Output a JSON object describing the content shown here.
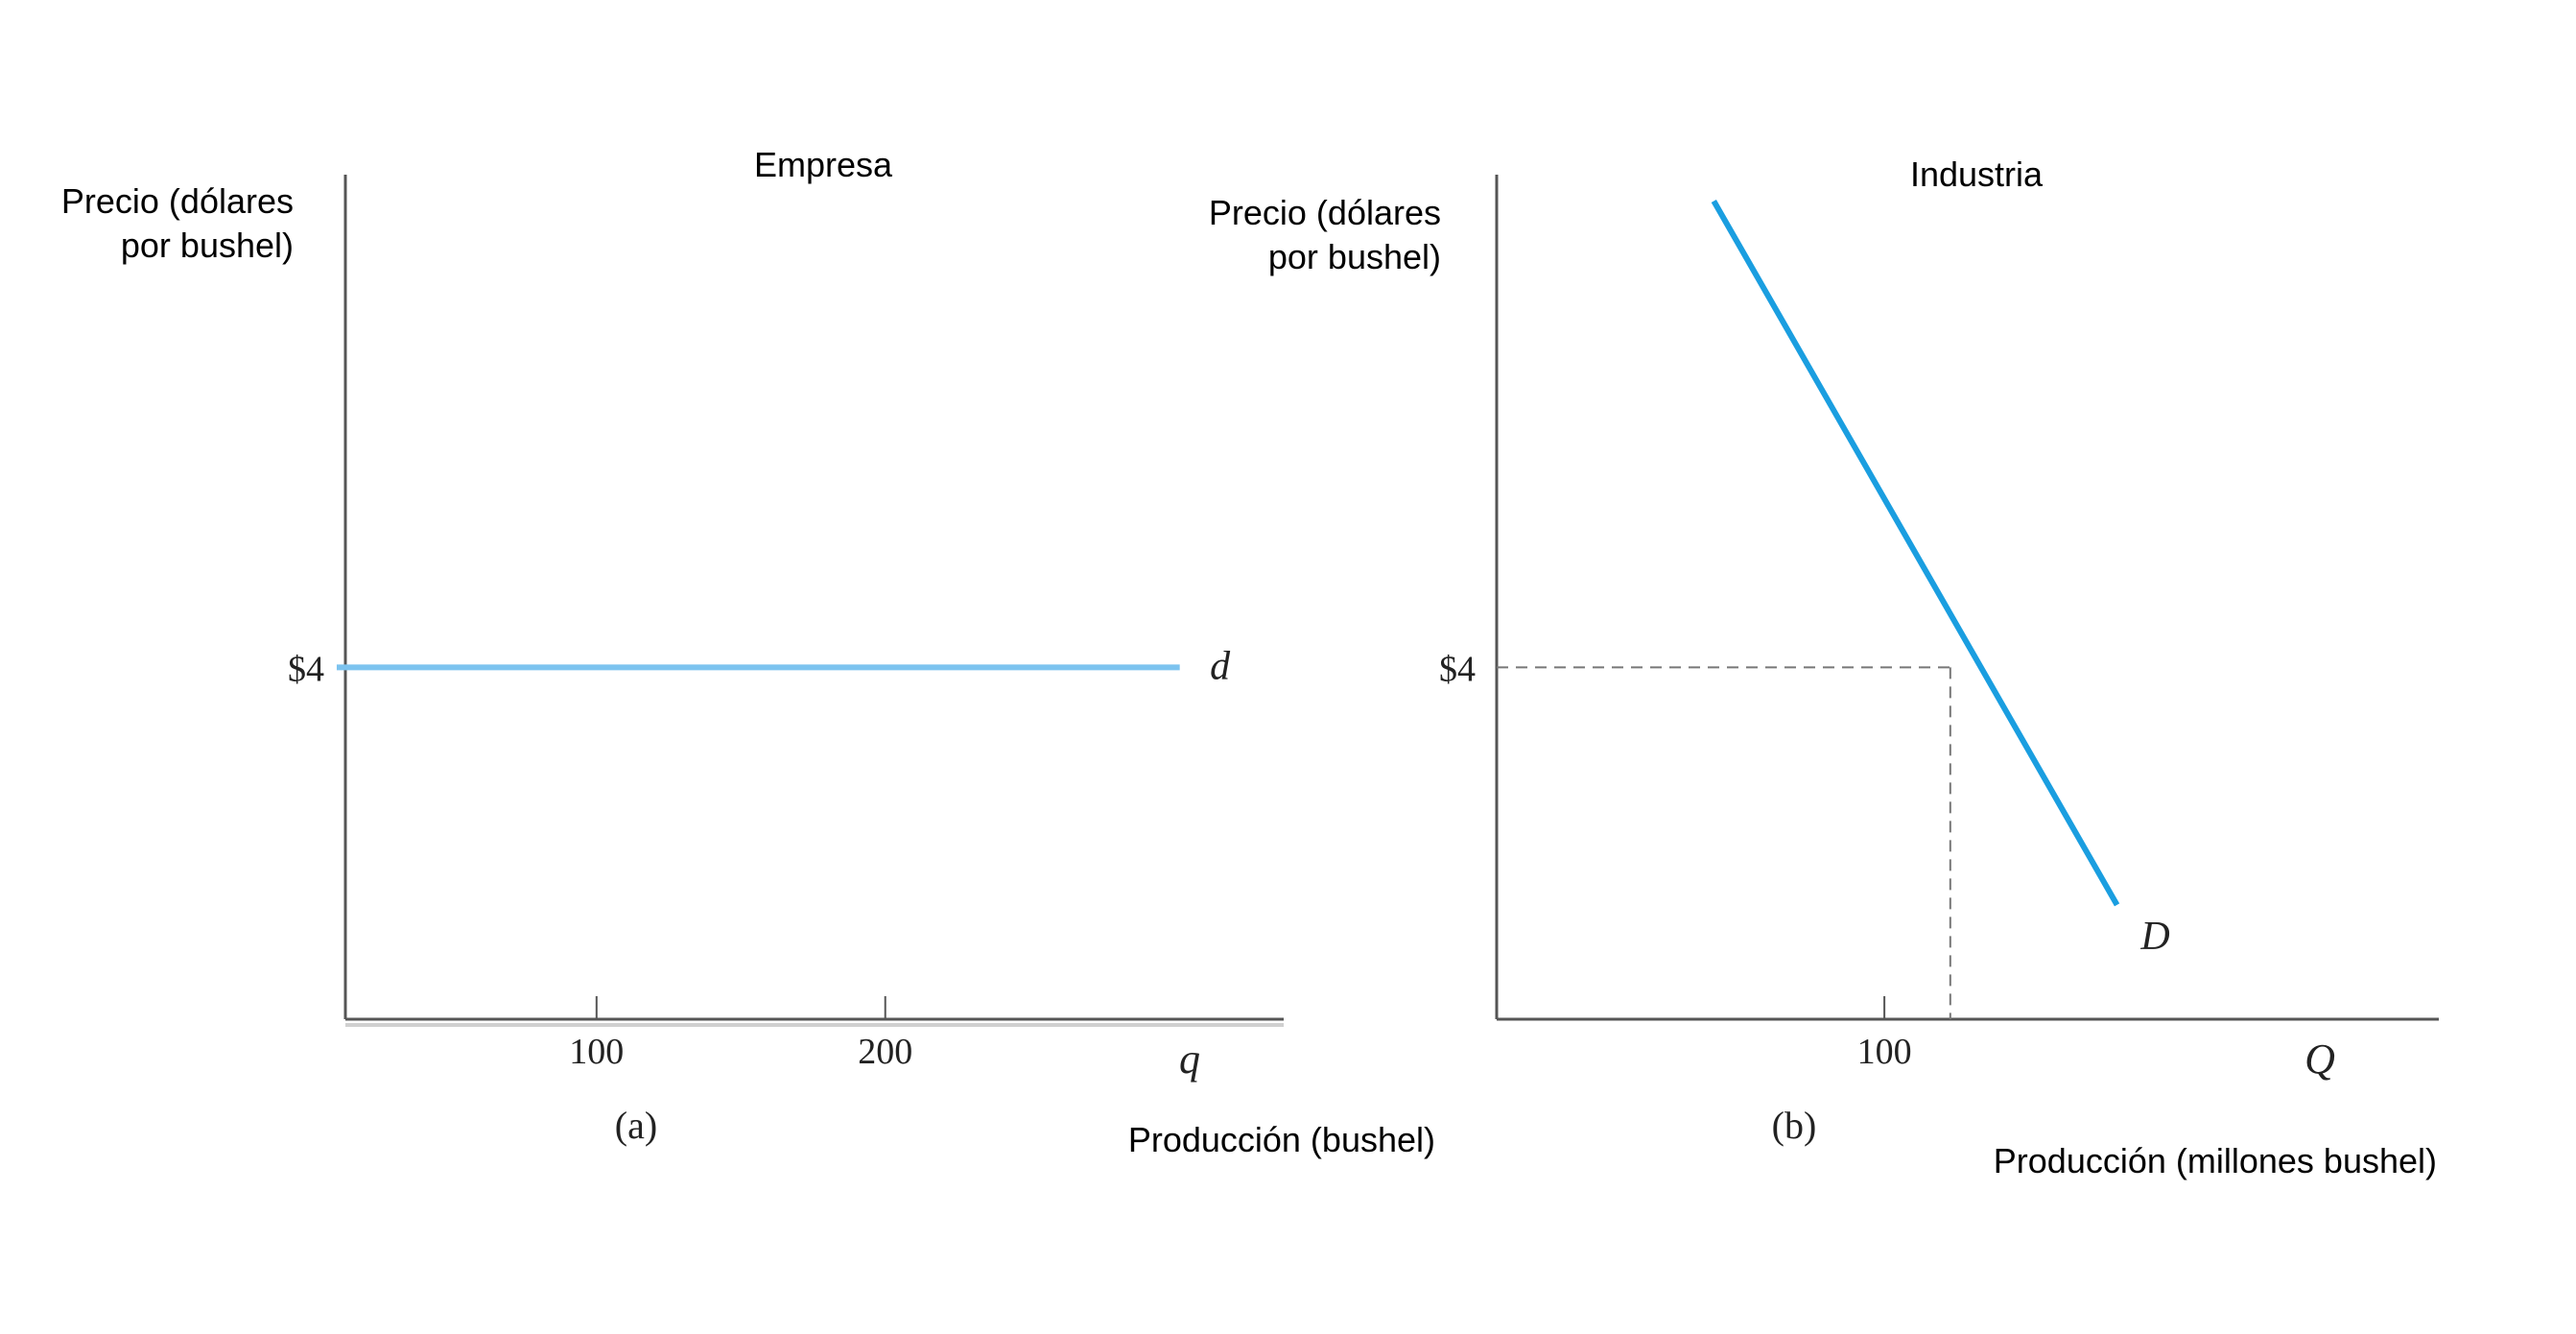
{
  "chart_data": [
    {
      "type": "line",
      "panel_label": "(a)",
      "title": "Empresa",
      "ylabel_lines": [
        "Precio (dólares",
        "por bushel)"
      ],
      "xlabel": "Producción (bushel)",
      "x_axis_symbol": "q",
      "x_ticks": [
        100,
        200
      ],
      "x_tick_labels": [
        "100",
        "200"
      ],
      "y_ticks": [
        4
      ],
      "y_tick_labels": [
        "$4"
      ],
      "xlim": [
        13,
        338
      ],
      "ylim": [
        0,
        9.6
      ],
      "series": [
        {
          "name": "d",
          "color": "#7cc3ef",
          "x": [
            10,
            302
          ],
          "y": [
            4,
            4
          ]
        }
      ]
    },
    {
      "type": "line",
      "panel_label": "(b)",
      "title": "Industria",
      "ylabel_lines": [
        "Precio (dólares",
        "por bushel)"
      ],
      "xlabel": "Producción (millones bushel)",
      "x_axis_symbol": "Q",
      "x_ticks": [
        100
      ],
      "x_tick_labels": [
        "100"
      ],
      "y_ticks": [
        4
      ],
      "y_tick_labels": [
        "$4"
      ],
      "xlim": [
        0,
        243
      ],
      "ylim": [
        0,
        9.6
      ],
      "series": [
        {
          "name": "D",
          "color": "#1a9ee0",
          "x": [
            56,
            160
          ],
          "y": [
            9.3,
            1.3
          ]
        }
      ],
      "reference_point": {
        "x": 117,
        "y": 4
      }
    }
  ]
}
